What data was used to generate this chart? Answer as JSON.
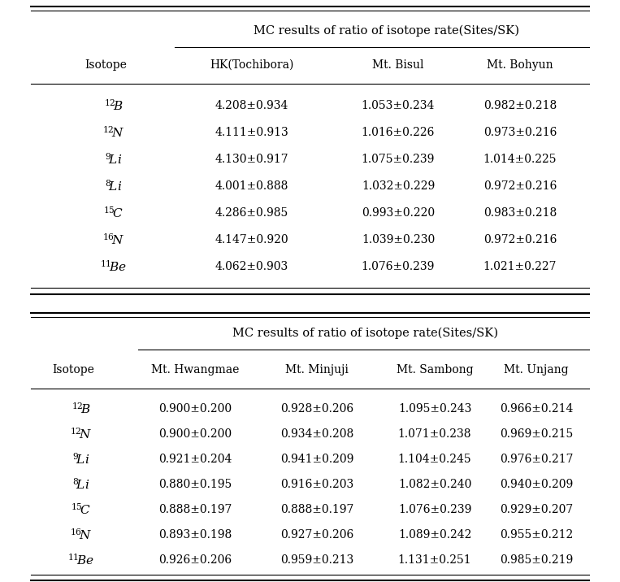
{
  "table1_title": "MC results of ratio of isotope rate(Sites/SK)",
  "table1_headers": [
    "Isotope",
    "HK(Tochibora)",
    "Mt. Bisul",
    "Mt. Bohyun"
  ],
  "table1_data": [
    [
      "4.208±0.934",
      "1.053±0.234",
      "0.982±0.218"
    ],
    [
      "4.111±0.913",
      "1.016±0.226",
      "0.973±0.216"
    ],
    [
      "4.130±0.917",
      "1.075±0.239",
      "1.014±0.225"
    ],
    [
      "4.001±0.888",
      "1.032±0.229",
      "0.972±0.216"
    ],
    [
      "4.286±0.985",
      "0.993±0.220",
      "0.983±0.218"
    ],
    [
      "4.147±0.920",
      "1.039±0.230",
      "0.972±0.216"
    ],
    [
      "4.062±0.903",
      "1.076±0.239",
      "1.021±0.227"
    ]
  ],
  "table2_title": "MC results of ratio of isotope rate(Sites/SK)",
  "table2_headers": [
    "Isotope",
    "Mt. Hwangmae",
    "Mt. Minjuji",
    "Mt. Sambong",
    "Mt. Unjang"
  ],
  "table2_data": [
    [
      "0.900±0.200",
      "0.928±0.206",
      "1.095±0.243",
      "0.966±0.214"
    ],
    [
      "0.900±0.200",
      "0.934±0.208",
      "1.071±0.238",
      "0.969±0.215"
    ],
    [
      "0.921±0.204",
      "0.941±0.209",
      "1.104±0.245",
      "0.976±0.217"
    ],
    [
      "0.880±0.195",
      "0.916±0.203",
      "1.082±0.240",
      "0.940±0.209"
    ],
    [
      "0.888±0.197",
      "0.888±0.197",
      "1.076±0.239",
      "0.929±0.207"
    ],
    [
      "0.893±0.198",
      "0.927±0.206",
      "1.089±0.242",
      "0.955±0.212"
    ],
    [
      "0.926±0.206",
      "0.959±0.213",
      "1.131±0.251",
      "0.985±0.219"
    ]
  ],
  "isotope_labels_math": [
    "$^{12}\\!B$",
    "$^{12}\\!N$",
    "$^{9}\\!Li$",
    "$^{8}\\!Li$",
    "$^{15}\\!C$",
    "$^{16}\\!N$",
    "$^{11}\\!Be$"
  ],
  "bg_color": "#ffffff",
  "text_color": "#000000",
  "line_color": "#000000",
  "lw_thick": 1.5,
  "lw_thin": 0.8
}
